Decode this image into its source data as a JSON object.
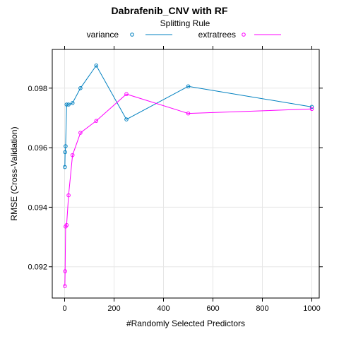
{
  "chart_data": {
    "type": "line",
    "title": "Dabrafenib_CNV with RF",
    "legend_title": "Splitting Rule",
    "legend_position": "top",
    "xlabel": "#Randomly Selected Predictors",
    "ylabel": "RMSE (Cross-Validation)",
    "xlim": [
      -50,
      1030
    ],
    "ylim": [
      0.09095,
      0.0993
    ],
    "xticks": [
      0,
      200,
      400,
      600,
      800,
      1000
    ],
    "yticks": [
      0.092,
      0.094,
      0.096,
      0.098
    ],
    "ytick_labels": [
      "0.092",
      "0.094",
      "0.096",
      "0.098"
    ],
    "grid": true,
    "series": [
      {
        "name": "variance",
        "color": "#0080c0",
        "x": [
          1,
          2,
          4,
          8,
          16,
          32,
          64,
          128,
          250,
          500,
          1000
        ],
        "y": [
          0.09535,
          0.09585,
          0.09605,
          0.09745,
          0.09745,
          0.0975,
          0.098,
          0.09876,
          0.09695,
          0.09806,
          0.09737
        ]
      },
      {
        "name": "extratrees",
        "color": "#ff00ff",
        "x": [
          1,
          2,
          4,
          8,
          16,
          32,
          64,
          128,
          250,
          500,
          1000
        ],
        "y": [
          0.09135,
          0.09185,
          0.09335,
          0.0934,
          0.0944,
          0.09575,
          0.0965,
          0.0969,
          0.0978,
          0.09715,
          0.0973
        ]
      }
    ]
  }
}
